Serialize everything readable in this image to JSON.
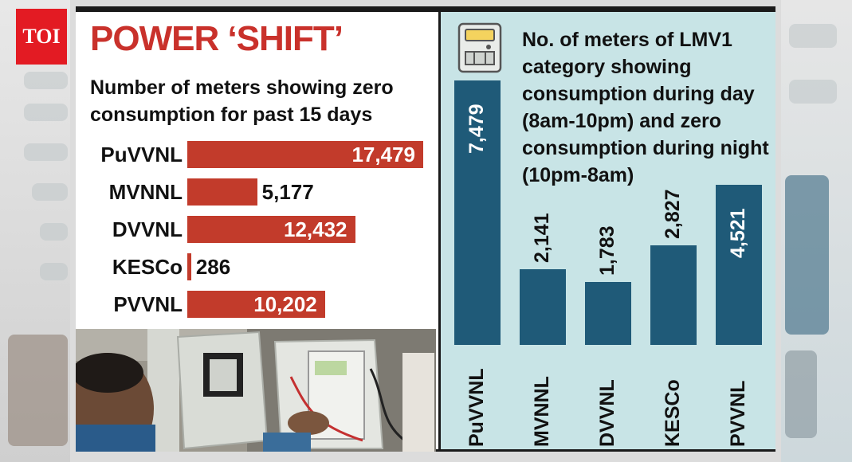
{
  "logo": {
    "text": "TOI"
  },
  "headline": "POWER ‘SHIFT’",
  "colors": {
    "bar_red": "#c23b2b",
    "bar_blue": "#1f5a78",
    "panel_teal": "#c8e4e6",
    "headline_red": "#c9312b"
  },
  "photo": {
    "icon": "meter-inspection-photo"
  },
  "right_icon": "electric-meter-icon",
  "chart_data": [
    {
      "type": "bar",
      "orientation": "horizontal",
      "title": "Number of meters showing zero consumption for past 15 days",
      "categories": [
        "PuVVNL",
        "MVNNL",
        "DVVNL",
        "KESCo",
        "PVVNL"
      ],
      "values": [
        17479,
        5177,
        12432,
        286,
        10202
      ],
      "value_labels": [
        "17,479",
        "5,177",
        "12,432",
        "286",
        "10,202"
      ],
      "xlim": [
        0,
        17479
      ],
      "grid": false
    },
    {
      "type": "bar",
      "orientation": "vertical",
      "title": "No. of meters of LMV1 category showing consumption during day (8am-10pm) and zero consumption during night (10pm-8am)",
      "categories": [
        "PuVVNL",
        "MVNNL",
        "DVVNL",
        "KESCo",
        "PVVNL"
      ],
      "values": [
        7479,
        2141,
        1783,
        2827,
        4521
      ],
      "value_labels": [
        "7,479",
        "2,141",
        "1,783",
        "2,827",
        "4,521"
      ],
      "ylim": [
        0,
        7479
      ],
      "grid": false
    }
  ]
}
